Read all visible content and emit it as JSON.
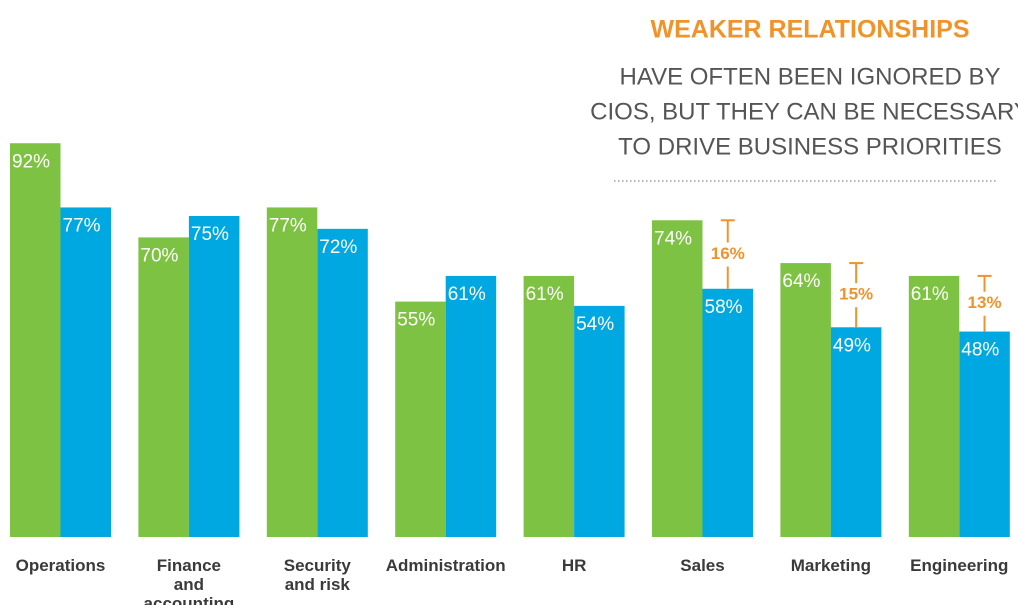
{
  "chart_data": {
    "type": "bar",
    "title": "WEAKER RELATIONSHIPS",
    "subtitle": [
      "HAVE OFTEN BEEN IGNORED BY",
      "CIOS, BUT THEY CAN BE NECESSARY",
      "TO DRIVE BUSINESS PRIORITIES"
    ],
    "categories": [
      "Operations",
      "Finance and accounting",
      "Security and risk",
      "Administration",
      "HR",
      "Sales",
      "Marketing",
      "Engineering"
    ],
    "series": [
      {
        "color": "#7dc242",
        "values": [
          92,
          70,
          77,
          55,
          61,
          74,
          64,
          61
        ],
        "value_labels": [
          "92%",
          "70%",
          "77%",
          "55%",
          "61%",
          "74%",
          "64%",
          "61%"
        ]
      },
      {
        "color": "#00a8e1",
        "values": [
          77,
          75,
          72,
          61,
          54,
          58,
          49,
          48
        ],
        "value_labels": [
          "77%",
          "75%",
          "72%",
          "61%",
          "54%",
          "58%",
          "49%",
          "48%"
        ]
      }
    ],
    "gaps": {
      "color": "#f0932b",
      "values": [
        null,
        null,
        null,
        null,
        null,
        16,
        15,
        13
      ],
      "value_labels": [
        null,
        null,
        null,
        null,
        null,
        "16%",
        "15%",
        "13%"
      ]
    },
    "ylim": [
      0,
      100
    ]
  }
}
